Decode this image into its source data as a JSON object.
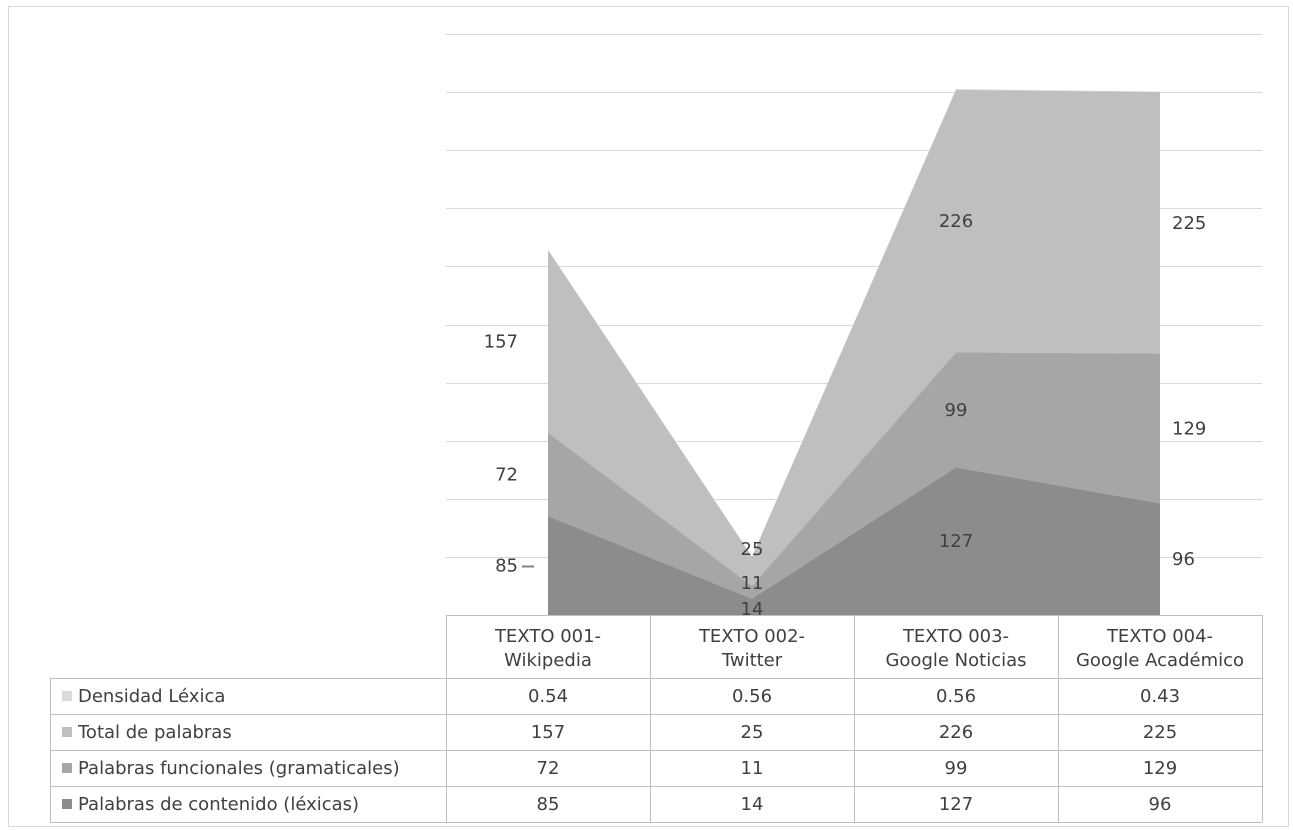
{
  "chart_data": {
    "type": "area",
    "stacked": true,
    "title": "",
    "xlabel": "",
    "ylabel": "",
    "ylim": [
      0,
      500
    ],
    "grid": true,
    "categories": [
      [
        "TEXTO 001-",
        "Wikipedia"
      ],
      [
        "TEXTO 002-",
        "Twitter"
      ],
      [
        "TEXTO 003-",
        "Google Noticias"
      ],
      [
        "TEXTO 004-",
        "Google Académico"
      ]
    ],
    "series": [
      {
        "name": "Palabras de contenido (léxicas)",
        "values": [
          85,
          14,
          127,
          96
        ],
        "color": "#8c8c8c"
      },
      {
        "name": "Palabras funcionales (gramaticales)",
        "values": [
          72,
          11,
          99,
          129
        ],
        "color": "#a6a6a6"
      },
      {
        "name": "Total de palabras",
        "values": [
          157,
          25,
          226,
          225
        ],
        "color": "#bfbfbf"
      },
      {
        "name": "Densidad Léxica",
        "values": [
          0.54,
          0.56,
          0.56,
          0.43
        ],
        "color": "#d9d9d9"
      }
    ],
    "data_table": {
      "rows": [
        {
          "label": "Densidad Léxica",
          "values": [
            "0.54",
            "0.56",
            "0.56",
            "0.43"
          ],
          "color": "#d9d9d9"
        },
        {
          "label": "Total de palabras",
          "values": [
            "157",
            "25",
            "226",
            "225"
          ],
          "color": "#bfbfbf"
        },
        {
          "label": "Palabras funcionales (gramaticales)",
          "values": [
            "72",
            "11",
            "99",
            "129"
          ],
          "color": "#a6a6a6"
        },
        {
          "label": "Palabras de contenido (léxicas)",
          "values": [
            "85",
            "14",
            "127",
            "96"
          ],
          "color": "#8c8c8c"
        }
      ]
    }
  }
}
